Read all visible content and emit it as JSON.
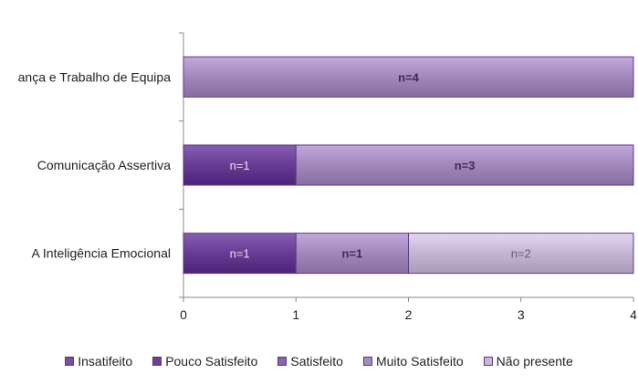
{
  "chart_data": {
    "type": "bar",
    "orientation": "horizontal",
    "stacked": true,
    "categories": [
      "ança e Trabalho de Equipa",
      "Comunicação Assertiva",
      "A Inteligência Emocional"
    ],
    "xlim": [
      0,
      4
    ],
    "x_ticks": [
      "0",
      "1",
      "2",
      "3",
      "4"
    ],
    "grid": false,
    "legend_position": "bottom",
    "series": [
      {
        "name": "Insatifeito",
        "color": "#7a4f9e",
        "values": [
          0,
          0,
          0
        ],
        "labels": [
          "",
          "",
          ""
        ]
      },
      {
        "name": "Pouco Satisfeito",
        "color": "#6a3f96",
        "values": [
          0,
          1,
          1
        ],
        "labels": [
          "",
          "n=1",
          "n=1"
        ]
      },
      {
        "name": "Satisfeito",
        "color": "#8a64ae",
        "values": [
          0,
          0,
          0
        ],
        "labels": [
          "",
          "",
          ""
        ]
      },
      {
        "name": "Muito Satisfeito",
        "color": "#a58bbd",
        "values": [
          4,
          3,
          1
        ],
        "labels": [
          "n=4",
          "n=3",
          "n=1"
        ]
      },
      {
        "name": "Não presente",
        "color": "#c7b8d6",
        "values": [
          0,
          0,
          2
        ],
        "labels": [
          "",
          "",
          "n=2"
        ]
      }
    ]
  }
}
